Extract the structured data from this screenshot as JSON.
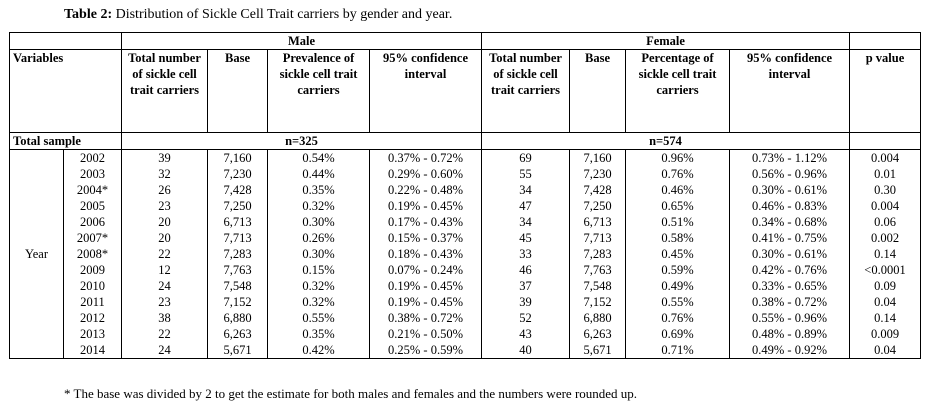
{
  "caption": {
    "label": "Table 2:",
    "text": " Distribution of Sickle Cell Trait carriers by gender and year."
  },
  "groups": {
    "male": "Male",
    "female": "Female"
  },
  "headers": {
    "variables": "Variables",
    "male_total": "Total number of sickle cell trait carriers",
    "male_base": "Base",
    "male_prevalence": "Prevalence of sickle cell trait carriers",
    "male_ci": "95% confidence interval",
    "female_total": "Total number of sickle cell trait carriers",
    "female_base": "Base",
    "female_percentage": "Percentage of sickle cell trait carriers",
    "female_ci": "95% confidence interval",
    "p_value": "p value"
  },
  "total_sample": {
    "label": "Total sample",
    "male_n": "n=325",
    "female_n": "n=574"
  },
  "year_label": "Year",
  "rows": [
    {
      "year": "2002",
      "m_total": "39",
      "m_base": "7,160",
      "m_prev": "0.54%",
      "m_ci": "0.37% - 0.72%",
      "f_total": "69",
      "f_base": "7,160",
      "f_pct": "0.96%",
      "f_ci": "0.73% - 1.12%",
      "p": "0.004"
    },
    {
      "year": "2003",
      "m_total": "32",
      "m_base": "7,230",
      "m_prev": "0.44%",
      "m_ci": "0.29% - 0.60%",
      "f_total": "55",
      "f_base": "7,230",
      "f_pct": "0.76%",
      "f_ci": "0.56% - 0.96%",
      "p": "0.01"
    },
    {
      "year": "2004*",
      "m_total": "26",
      "m_base": "7,428",
      "m_prev": "0.35%",
      "m_ci": "0.22% - 0.48%",
      "f_total": "34",
      "f_base": "7,428",
      "f_pct": "0.46%",
      "f_ci": "0.30% - 0.61%",
      "p": "0.30"
    },
    {
      "year": "2005",
      "m_total": "23",
      "m_base": "7,250",
      "m_prev": "0.32%",
      "m_ci": "0.19% - 0.45%",
      "f_total": "47",
      "f_base": "7,250",
      "f_pct": "0.65%",
      "f_ci": "0.46% - 0.83%",
      "p": "0.004"
    },
    {
      "year": "2006",
      "m_total": "20",
      "m_base": "6,713",
      "m_prev": "0.30%",
      "m_ci": "0.17% - 0.43%",
      "f_total": "34",
      "f_base": "6,713",
      "f_pct": "0.51%",
      "f_ci": "0.34% - 0.68%",
      "p": "0.06"
    },
    {
      "year": "2007*",
      "m_total": "20",
      "m_base": "7,713",
      "m_prev": "0.26%",
      "m_ci": "0.15% - 0.37%",
      "f_total": "45",
      "f_base": "7,713",
      "f_pct": "0.58%",
      "f_ci": "0.41% - 0.75%",
      "p": "0.002"
    },
    {
      "year": "2008*",
      "m_total": "22",
      "m_base": "7,283",
      "m_prev": "0.30%",
      "m_ci": "0.18% - 0.43%",
      "f_total": "33",
      "f_base": "7,283",
      "f_pct": "0.45%",
      "f_ci": "0.30% - 0.61%",
      "p": "0.14"
    },
    {
      "year": "2009",
      "m_total": "12",
      "m_base": "7,763",
      "m_prev": "0.15%",
      "m_ci": "0.07% - 0.24%",
      "f_total": "46",
      "f_base": "7,763",
      "f_pct": "0.59%",
      "f_ci": "0.42% - 0.76%",
      "p": "<0.0001"
    },
    {
      "year": "2010",
      "m_total": "24",
      "m_base": "7,548",
      "m_prev": "0.32%",
      "m_ci": "0.19% - 0.45%",
      "f_total": "37",
      "f_base": "7,548",
      "f_pct": "0.49%",
      "f_ci": "0.33% - 0.65%",
      "p": "0.09"
    },
    {
      "year": "2011",
      "m_total": "23",
      "m_base": "7,152",
      "m_prev": "0.32%",
      "m_ci": "0.19% - 0.45%",
      "f_total": "39",
      "f_base": "7,152",
      "f_pct": "0.55%",
      "f_ci": "0.38% - 0.72%",
      "p": "0.04"
    },
    {
      "year": "2012",
      "m_total": "38",
      "m_base": "6,880",
      "m_prev": "0.55%",
      "m_ci": "0.38% - 0.72%",
      "f_total": "52",
      "f_base": "6,880",
      "f_pct": "0.76%",
      "f_ci": "0.55% - 0.96%",
      "p": "0.14"
    },
    {
      "year": "2013",
      "m_total": "22",
      "m_base": "6,263",
      "m_prev": "0.35%",
      "m_ci": "0.21% - 0.50%",
      "f_total": "43",
      "f_base": "6,263",
      "f_pct": "0.69%",
      "f_ci": "0.48% - 0.89%",
      "p": "0.009"
    },
    {
      "year": "2014",
      "m_total": "24",
      "m_base": "5,671",
      "m_prev": "0.42%",
      "m_ci": "0.25% - 0.59%",
      "f_total": "40",
      "f_base": "5,671",
      "f_pct": "0.71%",
      "f_ci": "0.49% - 0.92%",
      "p": "0.04"
    }
  ],
  "footnote": "* The base was divided by 2 to get the estimate for both males and females and the numbers were rounded up."
}
